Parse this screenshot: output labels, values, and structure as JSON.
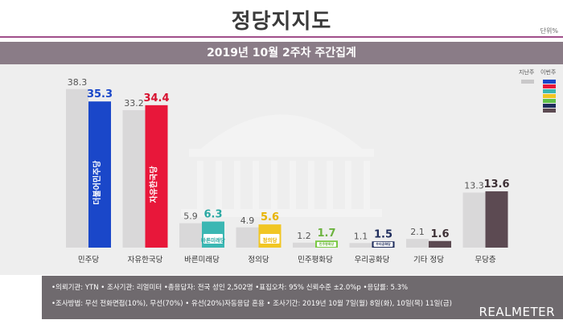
{
  "title": "정당지지도",
  "unit_label": "단위%",
  "subtitle": "2019년 10월 2주차 주간집계",
  "legend": {
    "prev_label": "지난주",
    "cur_label": "이번주"
  },
  "legend_colors": [
    "#1a47c9",
    "#e8173a",
    "#3bb7b3",
    "#f1c623",
    "#62c24a",
    "#1e2c5c",
    "#5c4a52"
  ],
  "chart_data": {
    "type": "bar",
    "categories": [
      "민주당",
      "자유한국당",
      "바른미래당",
      "정의당",
      "민주평화당",
      "우리공화당",
      "기타 정당",
      "무당층"
    ],
    "series": [
      {
        "name": "지난주",
        "values": [
          38.3,
          33.2,
          5.9,
          4.9,
          1.2,
          1.1,
          2.1,
          13.3
        ]
      },
      {
        "name": "이번주",
        "values": [
          35.3,
          34.4,
          6.3,
          5.6,
          1.7,
          1.5,
          1.6,
          13.6
        ]
      }
    ],
    "bar_colors_current": [
      "#1a47c9",
      "#e8173a",
      "#3bb7b3",
      "#f1c623",
      "#7ac943",
      "#1e2c5c",
      "#5c4a52",
      "#5c4a52"
    ],
    "label_colors_current": [
      "#1a47c9",
      "#d7112f",
      "#2aa8a3",
      "#e8b400",
      "#6cb33f",
      "#1e2c5c",
      "#3d3035",
      "#3d3035"
    ],
    "bar_color_previous": "#d9d8d9",
    "logos": [
      "더불어민주당",
      "자유한국당",
      "바른미래당",
      "정의당",
      "민주평화당",
      "우리공화당",
      "",
      ""
    ],
    "ylim": [
      0,
      40
    ],
    "grid": false
  },
  "footer": {
    "line1": "•의뢰기관: YTN • 조사기관: 리얼미터 •총응답자: 전국 성인 2,502명 •표집오차: 95% 신뢰수준 ±2.0%p •응답률: 5.3%",
    "line2": "•조사방법: 무선 전화면접(10%), 무선(70%) • 유선(20%)자동응답 혼용 • 조사기간: 2019년 10월 7일(월) 8일(화), 10일(목) 11일(금)"
  },
  "brand": "REALMETER"
}
